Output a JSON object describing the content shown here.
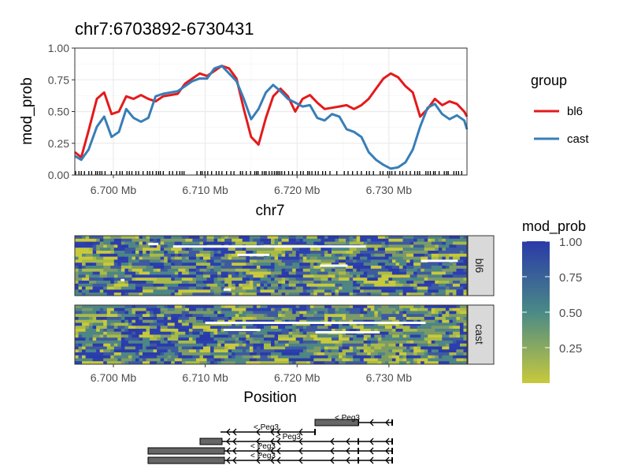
{
  "chart_data": [
    {
      "type": "line",
      "title": "chr7:6703892-6730431",
      "xlabel": "chr7",
      "ylabel": "mod_prob",
      "xlim": [
        6695800,
        6738500
      ],
      "ylim": [
        0,
        1
      ],
      "x_ticks": [
        6700000,
        6710000,
        6720000,
        6730000
      ],
      "x_tick_labels": [
        "6.700 Mb",
        "6.710 Mb",
        "6.720 Mb",
        "6.730 Mb"
      ],
      "y_ticks": [
        0,
        0.25,
        0.5,
        0.75,
        1
      ],
      "y_tick_labels": [
        "0.00",
        "0.25",
        "0.50",
        "0.75",
        "1.00"
      ],
      "grid": true,
      "legend": {
        "title": "group",
        "position": "right"
      },
      "series": [
        {
          "name": "bl6",
          "color": "#e41a1c",
          "x": [
            6695800,
            6696500,
            6697300,
            6698200,
            6699000,
            6699800,
            6700600,
            6701400,
            6702200,
            6703000,
            6703800,
            6704600,
            6705400,
            6706200,
            6707000,
            6707800,
            6708600,
            6709400,
            6710200,
            6711000,
            6711800,
            6712600,
            6713400,
            6714200,
            6715000,
            6715800,
            6716600,
            6717400,
            6718200,
            6719000,
            6719800,
            6720600,
            6721400,
            6722200,
            6723000,
            6723800,
            6724600,
            6725400,
            6726200,
            6727000,
            6727800,
            6728600,
            6729400,
            6730200,
            6731000,
            6731800,
            6732600,
            6733400,
            6734200,
            6735000,
            6735800,
            6736600,
            6737400,
            6738200,
            6738500
          ],
          "values": [
            0.18,
            0.14,
            0.35,
            0.6,
            0.65,
            0.48,
            0.5,
            0.62,
            0.6,
            0.63,
            0.6,
            0.58,
            0.62,
            0.63,
            0.64,
            0.72,
            0.76,
            0.8,
            0.78,
            0.82,
            0.86,
            0.84,
            0.76,
            0.52,
            0.3,
            0.24,
            0.45,
            0.62,
            0.68,
            0.62,
            0.5,
            0.6,
            0.63,
            0.57,
            0.52,
            0.53,
            0.54,
            0.55,
            0.52,
            0.55,
            0.6,
            0.68,
            0.76,
            0.8,
            0.77,
            0.7,
            0.65,
            0.46,
            0.52,
            0.6,
            0.55,
            0.58,
            0.56,
            0.5,
            0.46
          ]
        },
        {
          "name": "cast",
          "color": "#377eb8",
          "x": [
            6695800,
            6696500,
            6697300,
            6698200,
            6699000,
            6699800,
            6700600,
            6701400,
            6702200,
            6703000,
            6703800,
            6704600,
            6705400,
            6706200,
            6707000,
            6707800,
            6708600,
            6709400,
            6710200,
            6711000,
            6711800,
            6712600,
            6713400,
            6714200,
            6715000,
            6715800,
            6716600,
            6717400,
            6718200,
            6719000,
            6719800,
            6720600,
            6721400,
            6722200,
            6723000,
            6723800,
            6724600,
            6725400,
            6726200,
            6727000,
            6727800,
            6728600,
            6729400,
            6730200,
            6731000,
            6731800,
            6732600,
            6733400,
            6734200,
            6735000,
            6735800,
            6736600,
            6737400,
            6738200,
            6738500
          ],
          "values": [
            0.15,
            0.12,
            0.2,
            0.38,
            0.46,
            0.3,
            0.34,
            0.52,
            0.45,
            0.42,
            0.45,
            0.62,
            0.64,
            0.65,
            0.66,
            0.7,
            0.74,
            0.76,
            0.76,
            0.84,
            0.86,
            0.8,
            0.74,
            0.6,
            0.44,
            0.52,
            0.65,
            0.71,
            0.66,
            0.6,
            0.57,
            0.54,
            0.55,
            0.45,
            0.43,
            0.48,
            0.46,
            0.36,
            0.34,
            0.3,
            0.18,
            0.12,
            0.08,
            0.05,
            0.06,
            0.1,
            0.2,
            0.38,
            0.53,
            0.56,
            0.48,
            0.44,
            0.47,
            0.43,
            0.36
          ]
        }
      ]
    },
    {
      "type": "heatmap",
      "xlabel": "Position",
      "xlim": [
        6695800,
        6738500
      ],
      "x_ticks": [
        6700000,
        6710000,
        6720000,
        6730000
      ],
      "x_tick_labels": [
        "6.700 Mb",
        "6.710 Mb",
        "6.720 Mb",
        "6.730 Mb"
      ],
      "facets": [
        "bl6",
        "cast"
      ],
      "colorbar": {
        "title": "mod_prob",
        "ticks": [
          0.25,
          0.5,
          0.75,
          1.0
        ],
        "tick_labels": [
          "0.25",
          "0.50",
          "0.75",
          "1.00"
        ],
        "colors": [
          "#c8c93c",
          "#4a8a86",
          "#2a3aa8"
        ]
      }
    },
    {
      "type": "gene-track",
      "labels": [
        "< Peg3",
        "< Peg3",
        "< Peg3",
        "< Peg3",
        "< Peg3"
      ]
    }
  ]
}
